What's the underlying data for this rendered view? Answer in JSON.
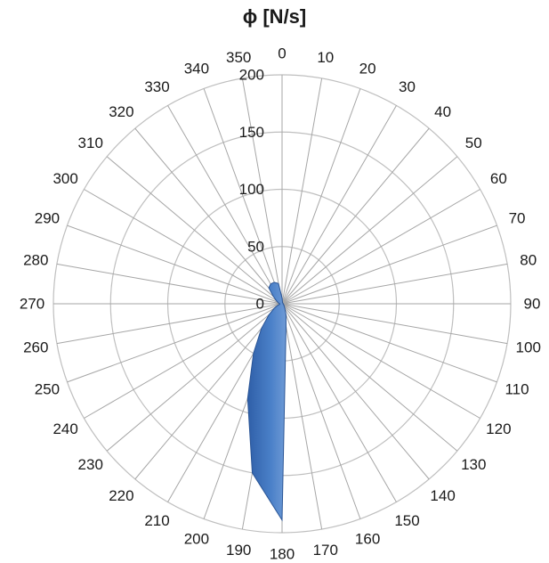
{
  "chart_data": {
    "type": "radar",
    "title": "ϕ [N/s]",
    "angles": [
      0,
      10,
      20,
      30,
      40,
      50,
      60,
      70,
      80,
      90,
      100,
      110,
      120,
      130,
      140,
      150,
      160,
      170,
      180,
      190,
      200,
      210,
      220,
      230,
      240,
      250,
      260,
      270,
      280,
      290,
      300,
      310,
      320,
      330,
      340,
      350
    ],
    "radial_ticks": [
      0,
      50,
      100,
      150,
      200
    ],
    "rlim": [
      0,
      200
    ],
    "series": [
      {
        "color": "#3a6fb8",
        "values": [
          5,
          2,
          1,
          1,
          1,
          1,
          1,
          1,
          1,
          1,
          1,
          1,
          2,
          2,
          3,
          5,
          10,
          20,
          189,
          150,
          88,
          50,
          28,
          15,
          8,
          4,
          2,
          2,
          3,
          4,
          6,
          10,
          18,
          20,
          20,
          18
        ]
      }
    ],
    "grid": true,
    "gridline_color": "#bfbfbf",
    "spoke_color": "#a6a6a6"
  }
}
